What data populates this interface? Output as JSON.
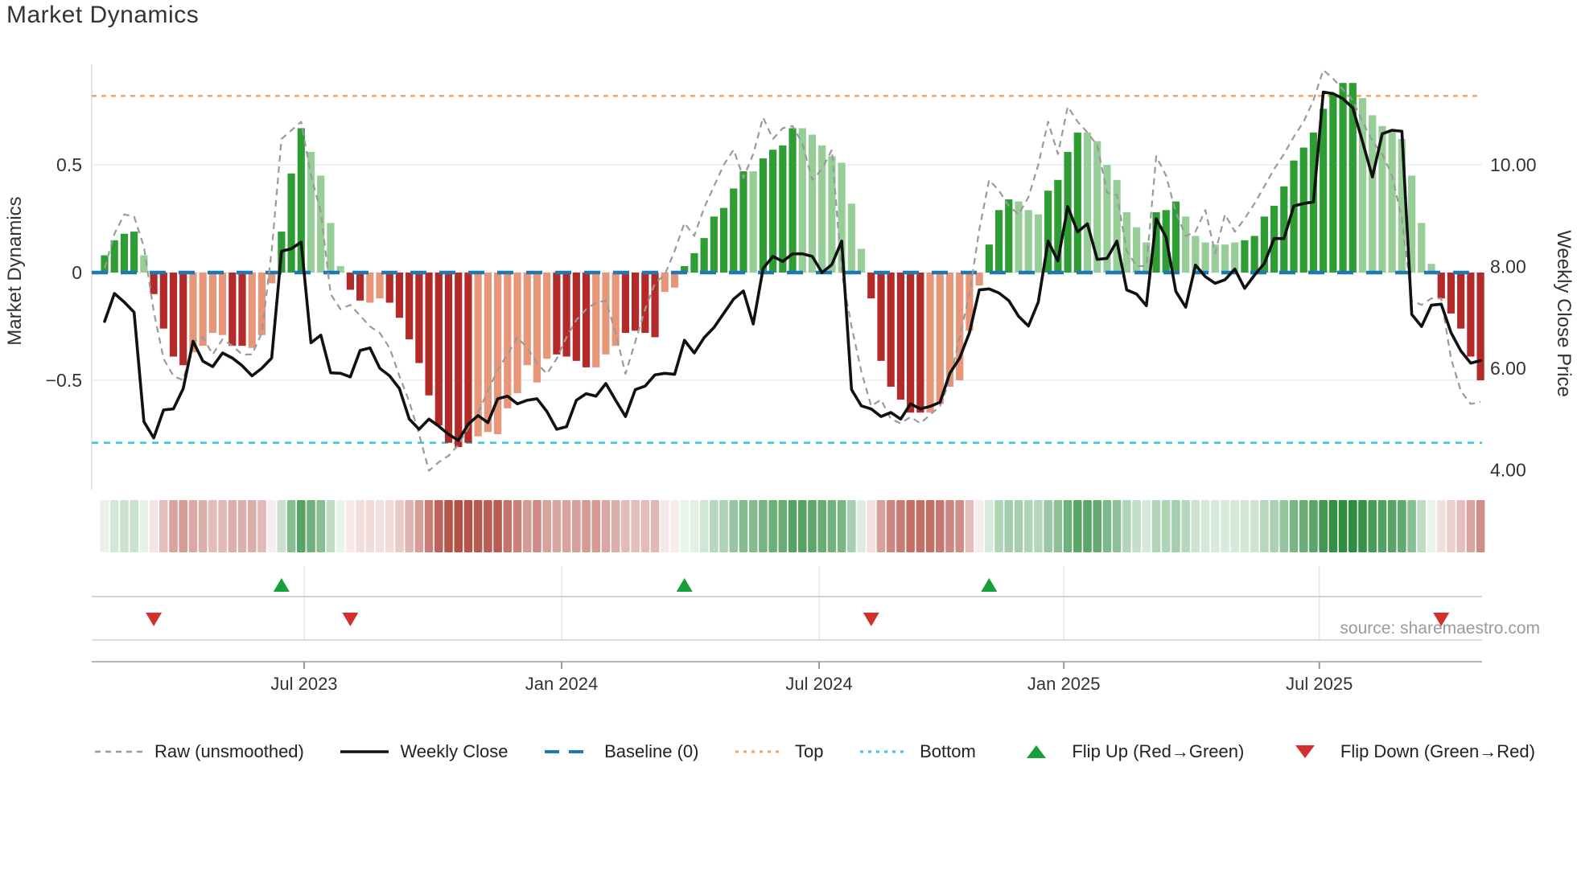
{
  "title": "Market Dynamics",
  "source": "source: sharemaestro.com",
  "colors": {
    "dark_green": "#2e9d33",
    "light_green": "#97ce97",
    "dark_red": "#b32a28",
    "light_red": "#e8967a",
    "close_line": "#111111",
    "raw_line": "#9a9a9a",
    "baseline": "#1f77b4",
    "top_line": "#f2a35e",
    "bottom_line": "#3dc6ec",
    "flip_up": "#16a03c",
    "flip_down": "#d0312d",
    "grid": "#e9edf2",
    "spine": "#b5b5b5",
    "panel_line": "#d2d2d2",
    "panel_grid": "#e6e6e6",
    "axis_text": "#333333",
    "heat_green": [
      46,
      141,
      64
    ],
    "heat_red": [
      178,
      72,
      62
    ]
  },
  "legend": {
    "items": [
      {
        "label": "Raw (unsmoothed)",
        "swatch": "dashed-line",
        "color": "#9a9a9a"
      },
      {
        "label": "Weekly Close",
        "swatch": "solid-line",
        "color": "#111111"
      },
      {
        "label": "Baseline (0)",
        "swatch": "long-dash-line",
        "color": "#1f77b4"
      },
      {
        "label": "Top",
        "swatch": "dotted-line",
        "color": "#f2a35e"
      },
      {
        "label": "Bottom",
        "swatch": "dotted-line",
        "color": "#3dc6ec"
      },
      {
        "label": "Flip Up (Red→Green)",
        "swatch": "triangle-up",
        "color": "#16a03c"
      },
      {
        "label": "Flip Down (Green→Red)",
        "swatch": "triangle-down",
        "color": "#d0312d"
      }
    ]
  },
  "chart_data": {
    "type": "combo",
    "description": "Weekly smoothed market-dynamics oscillator bars with raw oscillator line, weekly close price line, threshold bands, heatmap strip and regime-flip markers",
    "left_axis": {
      "label": "Market Dynamics",
      "ticks": [
        {
          "value": 0.5,
          "label": "0.5"
        },
        {
          "value": 0,
          "label": "0"
        },
        {
          "value": -0.5,
          "label": "−0.5"
        }
      ],
      "range": [
        -1.01,
        0.97
      ]
    },
    "right_axis": {
      "label": "Weekly Close Price",
      "ticks": [
        {
          "value": 10,
          "label": "10.00"
        },
        {
          "value": 8,
          "label": "8.00"
        },
        {
          "value": 6,
          "label": "6.00"
        },
        {
          "value": 4,
          "label": "4.00"
        }
      ],
      "range": [
        3.6,
        12.0
      ]
    },
    "x_ticks": [
      {
        "label": "Jul 2023",
        "i": 20.3
      },
      {
        "label": "Jan 2024",
        "i": 46.5
      },
      {
        "label": "Jul 2024",
        "i": 72.7
      },
      {
        "label": "Jan 2025",
        "i": 97.6
      },
      {
        "label": "Jul 2025",
        "i": 123.6
      }
    ],
    "baseline": 0,
    "top": 0.82,
    "bottom": -0.79,
    "flip_up_indices": [
      18,
      59,
      90
    ],
    "flip_down_indices": [
      5,
      25,
      78,
      136
    ],
    "osc": [
      0.08,
      0.15,
      0.18,
      0.19,
      0.08,
      -0.1,
      -0.26,
      -0.39,
      -0.43,
      -0.37,
      -0.34,
      -0.28,
      -0.29,
      -0.34,
      -0.34,
      -0.35,
      -0.29,
      -0.05,
      0.19,
      0.46,
      0.67,
      0.56,
      0.45,
      0.23,
      0.03,
      -0.08,
      -0.13,
      -0.14,
      -0.12,
      -0.14,
      -0.21,
      -0.31,
      -0.42,
      -0.57,
      -0.71,
      -0.79,
      -0.81,
      -0.79,
      -0.76,
      -0.74,
      -0.75,
      -0.63,
      -0.56,
      -0.43,
      -0.51,
      -0.4,
      -0.38,
      -0.39,
      -0.41,
      -0.44,
      -0.44,
      -0.38,
      -0.34,
      -0.28,
      -0.27,
      -0.28,
      -0.3,
      -0.09,
      -0.07,
      0.03,
      0.09,
      0.16,
      0.26,
      0.3,
      0.39,
      0.47,
      0.47,
      0.53,
      0.57,
      0.59,
      0.67,
      0.67,
      0.64,
      0.59,
      0.54,
      0.51,
      0.32,
      0.11,
      -0.12,
      -0.41,
      -0.53,
      -0.59,
      -0.65,
      -0.65,
      -0.65,
      -0.61,
      -0.53,
      -0.5,
      -0.27,
      -0.06,
      0.13,
      0.29,
      0.34,
      0.33,
      0.29,
      0.27,
      0.38,
      0.43,
      0.56,
      0.65,
      0.65,
      0.61,
      0.5,
      0.43,
      0.28,
      0.21,
      0.14,
      0.28,
      0.29,
      0.33,
      0.26,
      0.17,
      0.14,
      0.13,
      0.13,
      0.14,
      0.15,
      0.17,
      0.26,
      0.31,
      0.4,
      0.52,
      0.58,
      0.65,
      0.76,
      0.83,
      0.88,
      0.88,
      0.81,
      0.73,
      0.68,
      0.66,
      0.62,
      0.45,
      0.23,
      0.04,
      -0.12,
      -0.19,
      -0.26,
      -0.39,
      -0.5
    ],
    "shade_runs": [
      [
        "d",
        4
      ],
      [
        "l",
        1
      ],
      [
        "d",
        4
      ],
      [
        "l",
        4
      ],
      [
        "d",
        2
      ],
      [
        "l",
        3
      ],
      [
        "d",
        3
      ],
      [
        "l",
        4
      ],
      [
        "d",
        2
      ],
      [
        "l",
        2
      ],
      [
        "d",
        9
      ],
      [
        "l",
        8
      ],
      [
        "d",
        4
      ],
      [
        "l",
        3
      ],
      [
        "d",
        4
      ],
      [
        "l",
        2
      ],
      [
        "d",
        7
      ],
      [
        "l",
        1
      ],
      [
        "d",
        4
      ],
      [
        "l",
        7
      ],
      [
        "d",
        6
      ],
      [
        "l",
        6
      ],
      [
        "d",
        3
      ],
      [
        "l",
        3
      ],
      [
        "d",
        4
      ],
      [
        "l",
        7
      ],
      [
        "d",
        3
      ],
      [
        "l",
        6
      ],
      [
        "d",
        12
      ],
      [
        "l",
        8
      ],
      [
        "d",
        5
      ]
    ],
    "raw": [
      0.02,
      0.18,
      0.27,
      0.26,
      0.12,
      -0.18,
      -0.4,
      -0.48,
      -0.5,
      -0.32,
      -0.3,
      -0.38,
      -0.31,
      -0.34,
      -0.38,
      -0.38,
      -0.28,
      0.1,
      0.62,
      0.66,
      0.7,
      0.45,
      0.28,
      -0.1,
      -0.17,
      -0.15,
      -0.2,
      -0.25,
      -0.28,
      -0.35,
      -0.48,
      -0.6,
      -0.75,
      -0.92,
      -0.88,
      -0.85,
      -0.8,
      -0.72,
      -0.65,
      -0.55,
      -0.45,
      -0.38,
      -0.3,
      -0.35,
      -0.42,
      -0.47,
      -0.4,
      -0.3,
      -0.22,
      -0.17,
      -0.14,
      -0.13,
      -0.28,
      -0.47,
      -0.32,
      -0.17,
      -0.05,
      -0.01,
      0.1,
      0.23,
      0.17,
      0.3,
      0.4,
      0.5,
      0.57,
      0.44,
      0.55,
      0.72,
      0.62,
      0.67,
      0.68,
      0.6,
      0.43,
      0.48,
      0.57,
      0.0,
      -0.25,
      -0.46,
      -0.62,
      -0.59,
      -0.68,
      -0.7,
      -0.67,
      -0.7,
      -0.66,
      -0.62,
      -0.5,
      -0.3,
      -0.1,
      0.2,
      0.43,
      0.38,
      0.31,
      0.27,
      0.35,
      0.5,
      0.7,
      0.55,
      0.77,
      0.7,
      0.65,
      0.59,
      0.37,
      0.36,
      0.1,
      0.03,
      0.03,
      0.54,
      0.45,
      0.28,
      0.17,
      0.19,
      0.29,
      0.09,
      0.27,
      0.19,
      0.25,
      0.32,
      0.4,
      0.48,
      0.55,
      0.63,
      0.7,
      0.8,
      0.94,
      0.9,
      0.85,
      0.8,
      0.7,
      0.61,
      0.55,
      0.45,
      0.25,
      -0.13,
      -0.15,
      -0.12,
      -0.12,
      -0.4,
      -0.55,
      -0.61,
      -0.6
    ],
    "close": [
      6.92,
      7.47,
      7.3,
      7.1,
      4.95,
      4.63,
      5.18,
      5.2,
      5.6,
      6.53,
      6.14,
      6.03,
      6.3,
      6.2,
      6.05,
      5.85,
      6.0,
      6.2,
      8.3,
      8.35,
      8.48,
      6.5,
      6.65,
      5.91,
      5.9,
      5.83,
      6.35,
      6.4,
      6.0,
      5.85,
      5.6,
      5.0,
      4.8,
      5.0,
      4.86,
      4.7,
      4.58,
      4.9,
      5.07,
      4.93,
      5.4,
      5.45,
      5.3,
      5.37,
      5.4,
      5.15,
      4.8,
      4.85,
      5.37,
      5.5,
      5.45,
      5.7,
      5.37,
      5.05,
      5.58,
      5.65,
      5.87,
      5.9,
      5.88,
      6.55,
      6.3,
      6.6,
      6.8,
      7.08,
      7.36,
      7.52,
      6.87,
      7.96,
      8.2,
      8.1,
      8.25,
      8.25,
      8.2,
      7.88,
      8.04,
      8.5,
      5.58,
      5.26,
      5.2,
      5.05,
      5.13,
      5.0,
      5.3,
      5.2,
      5.25,
      5.33,
      5.9,
      6.2,
      6.7,
      7.54,
      7.56,
      7.48,
      7.33,
      7.02,
      6.83,
      7.3,
      8.5,
      8.11,
      9.18,
      8.68,
      8.84,
      8.14,
      8.16,
      8.5,
      7.54,
      7.46,
      7.23,
      8.94,
      8.58,
      7.51,
      7.2,
      8.03,
      7.8,
      7.67,
      7.74,
      7.95,
      7.57,
      7.83,
      8.06,
      8.55,
      8.55,
      9.19,
      9.24,
      9.27,
      11.43,
      11.4,
      11.3,
      11.12,
      10.45,
      9.76,
      10.61,
      10.68,
      10.66,
      7.06,
      6.82,
      7.24,
      7.26,
      6.7,
      6.34,
      6.1,
      6.15
    ]
  }
}
